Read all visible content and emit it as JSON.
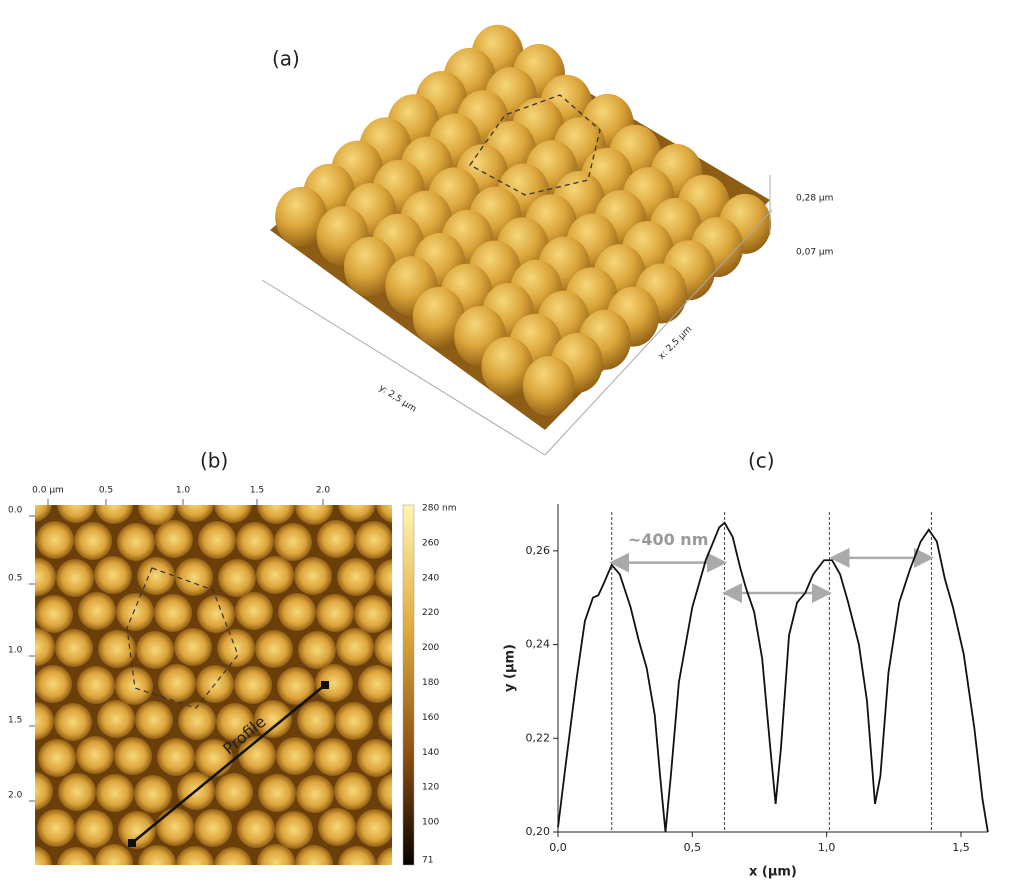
{
  "panel_a": {
    "label": "(a)",
    "z_top": "0,28 µm",
    "z_bottom": "0,07 µm",
    "y_axis": "y: 2,5 µm",
    "x_axis": "x: 2,5 µm"
  },
  "panel_b": {
    "label": "(b)",
    "xticks": [
      "0.0 µm",
      "0.5",
      "1.0",
      "1.5",
      "2.0"
    ],
    "yticks": [
      "0.0",
      "0.5",
      "1.0",
      "1.5",
      "2.0"
    ],
    "colorbar_ticks": [
      "280 nm",
      "260",
      "240",
      "220",
      "200",
      "180",
      "160",
      "140",
      "120",
      "100",
      "71"
    ],
    "profile_label": "Profile"
  },
  "chart_data": {
    "type": "line",
    "title": "(c)",
    "x_label": "x (µm)",
    "y_label": "y (µm)",
    "x": [
      0.0,
      0.03,
      0.07,
      0.1,
      0.13,
      0.15,
      0.17,
      0.2,
      0.23,
      0.27,
      0.3,
      0.33,
      0.36,
      0.38,
      0.4,
      0.42,
      0.45,
      0.5,
      0.55,
      0.6,
      0.62,
      0.65,
      0.68,
      0.7,
      0.73,
      0.76,
      0.79,
      0.81,
      0.83,
      0.86,
      0.89,
      0.92,
      0.95,
      0.99,
      1.02,
      1.05,
      1.08,
      1.12,
      1.15,
      1.18,
      1.2,
      1.23,
      1.27,
      1.31,
      1.35,
      1.38,
      1.41,
      1.44,
      1.47,
      1.51,
      1.55,
      1.58,
      1.6
    ],
    "series": [
      {
        "color": "#111111",
        "values": [
          0.201,
          0.215,
          0.233,
          0.245,
          0.25,
          0.2505,
          0.253,
          0.257,
          0.255,
          0.248,
          0.241,
          0.235,
          0.225,
          0.212,
          0.2,
          0.212,
          0.232,
          0.248,
          0.258,
          0.265,
          0.266,
          0.263,
          0.256,
          0.252,
          0.247,
          0.237,
          0.218,
          0.206,
          0.218,
          0.242,
          0.249,
          0.251,
          0.255,
          0.258,
          0.258,
          0.255,
          0.249,
          0.24,
          0.228,
          0.206,
          0.212,
          0.234,
          0.249,
          0.256,
          0.262,
          0.2645,
          0.262,
          0.254,
          0.248,
          0.238,
          0.222,
          0.207,
          0.2
        ]
      }
    ],
    "xlim": [
      0,
      1.6
    ],
    "ylim": [
      0.2,
      0.27
    ],
    "xticks": [
      {
        "value": 0,
        "label": "0,0"
      },
      {
        "value": 0.5,
        "label": "0,5"
      },
      {
        "value": 1,
        "label": "1,0"
      },
      {
        "value": 1.5,
        "label": "1,5"
      }
    ],
    "yticks": [
      {
        "value": 0.2,
        "label": "0,20"
      },
      {
        "value": 0.22,
        "label": "0,22"
      },
      {
        "value": 0.24,
        "label": "0,24"
      },
      {
        "value": 0.26,
        "label": "0,26"
      }
    ],
    "peak_lines": [
      0.2,
      0.62,
      1.01,
      1.39
    ],
    "arrows": [
      {
        "from": 0.2,
        "to": 0.62,
        "y": 0.2575
      },
      {
        "from": 0.62,
        "to": 1.01,
        "y": 0.251
      },
      {
        "from": 1.02,
        "to": 1.39,
        "y": 0.2585
      }
    ],
    "annotation": "~400 nm"
  }
}
